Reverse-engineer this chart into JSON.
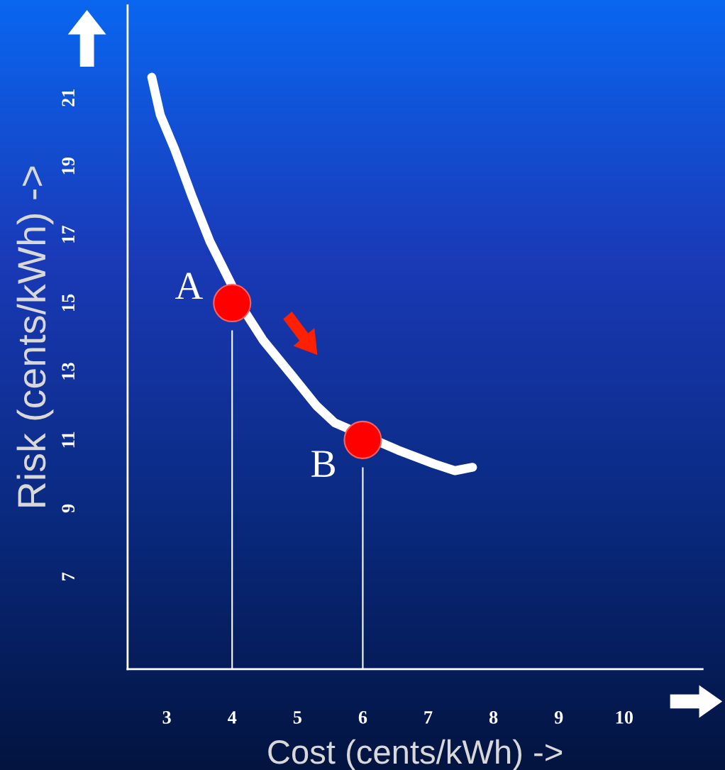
{
  "chart_data": {
    "type": "line",
    "xlabel": "Cost (cents/kWh) ->",
    "ylabel": "Risk (cents/kWh) ->",
    "xlim": [
      2.4,
      11.2
    ],
    "ylim": [
      4.3,
      23.7
    ],
    "xticks": [
      3,
      4,
      5,
      6,
      7,
      8,
      9,
      10
    ],
    "yticks": [
      7,
      9,
      11,
      13,
      15,
      17,
      19,
      21
    ],
    "grid": false,
    "legend": false,
    "line_style": "solid",
    "series": [
      {
        "color": "#ffffff",
        "x": [
          2.77,
          2.9,
          3.12,
          3.39,
          3.66,
          4.21,
          4.48,
          4.91,
          5.29,
          5.57,
          6.54,
          7.09,
          7.41,
          7.68
        ],
        "values": [
          21.6,
          20.5,
          19.5,
          18.1,
          16.8,
          14.7,
          13.9,
          12.9,
          12.0,
          11.5,
          10.7,
          10.3,
          10.1,
          10.2
        ]
      },
      {
        "type": "scatter",
        "color": "#ff0000",
        "marker": "circle",
        "x": [
          4,
          6
        ],
        "values": [
          15,
          11
        ]
      }
    ],
    "ref_lines": [
      {
        "axis": "x",
        "value": 4,
        "color": "#ffffff"
      },
      {
        "axis": "x",
        "value": 6,
        "color": "#ffffff"
      }
    ],
    "annotations": [
      {
        "text": "A",
        "x": 4,
        "y": 15
      },
      {
        "text": "B",
        "x": 6,
        "y": 11
      }
    ]
  }
}
